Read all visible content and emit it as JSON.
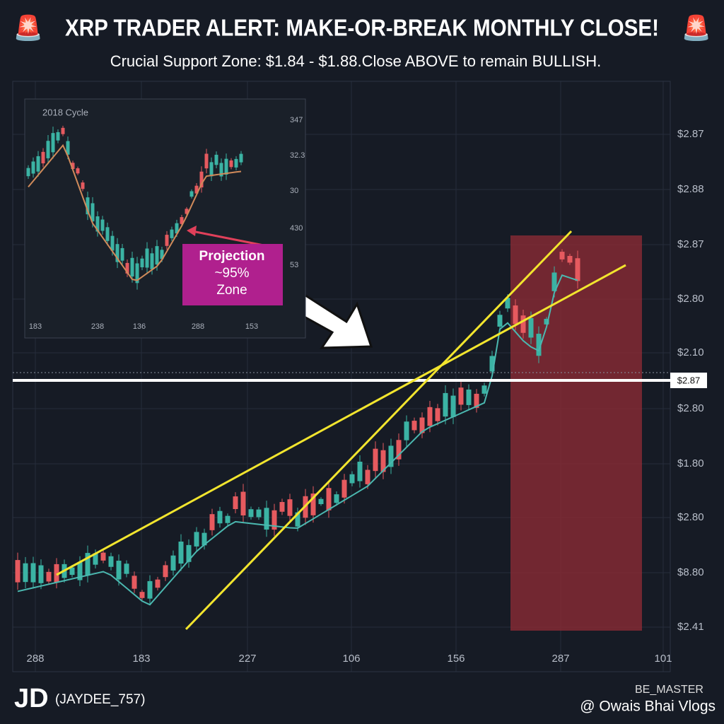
{
  "header": {
    "title": "XRP TRADER ALERT: MAKE-OR-BREAK MONTHLY CLOSE!",
    "subtitle": "Crucial Support Zone: $1.84 - $1.88.Close ABOVE to remain BULLISH."
  },
  "chart": {
    "y_axis_labels": [
      "$2.87",
      "$2.88",
      "$2.87",
      "$2.80",
      "$2.10",
      "$2.80",
      "$1.80",
      "$2.80",
      "$8.80",
      "$2.41"
    ],
    "price_tag": "$2.87",
    "x_axis_labels": [
      "288",
      "183",
      "227",
      "106",
      "156",
      "287",
      "101"
    ]
  },
  "inset": {
    "title": "2018 Cycle",
    "y_axis_labels": [
      "347",
      "32.3",
      "30",
      "430",
      "53"
    ],
    "x_axis_labels": [
      "183",
      "238",
      "136",
      "288",
      "153"
    ],
    "callout": [
      "Projection",
      "~95%",
      "Zone"
    ]
  },
  "footer": {
    "logo": "JD",
    "handle": "(JAYDEE_757)",
    "brand": "BE_MASTER",
    "watermark": "@ Owais Bhai Vlogs"
  }
}
